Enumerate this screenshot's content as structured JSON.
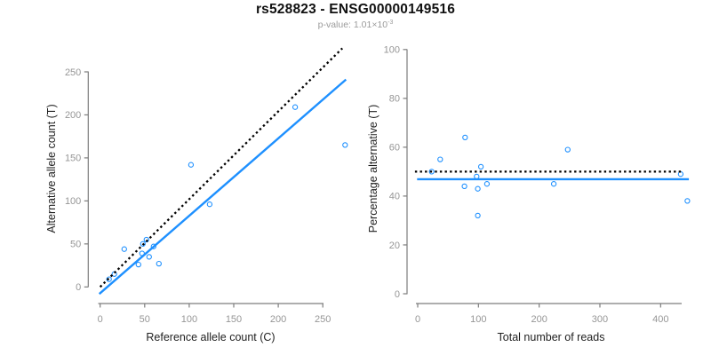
{
  "header": {
    "title": "rs528823 - ENSG00000149516",
    "subtitle_prefix": "p-value: ",
    "subtitle_value": "1.01×10",
    "subtitle_exponent": "-3"
  },
  "colors": {
    "accent_blue": "#1E90FF",
    "dotted_black": "#000000",
    "tick_label_gray": "#969696",
    "axis_line_gray": "#7d7d7d",
    "axis_title_dark": "#1f1f1f",
    "title_black": "#111111",
    "subtitle_gray": "#9b9b9b"
  },
  "chart_data": [
    {
      "name": "allele-count-scatter",
      "type": "scatter",
      "xlabel": "Reference allele count (C)",
      "ylabel": "Alternative allele count (T)",
      "xticks": [
        0,
        50,
        100,
        150,
        200,
        250
      ],
      "yticks": [
        0,
        50,
        100,
        150,
        200,
        250
      ],
      "xlim": [
        -5,
        280
      ],
      "ylim": [
        -10,
        285
      ],
      "grid": false,
      "legend": null,
      "points": [
        [
          10,
          9
        ],
        [
          16,
          15
        ],
        [
          27,
          44
        ],
        [
          43,
          26
        ],
        [
          47,
          39
        ],
        [
          48,
          50
        ],
        [
          52,
          55
        ],
        [
          55,
          35
        ],
        [
          60,
          47
        ],
        [
          66,
          27
        ],
        [
          102,
          142
        ],
        [
          123,
          96
        ],
        [
          219,
          209
        ],
        [
          275,
          165
        ]
      ],
      "lines": [
        {
          "name": "identity-dotted-line",
          "style": "dotted",
          "color": "#000000",
          "slope": 1.02,
          "intercept": 0,
          "x_range": [
            0,
            272
          ]
        },
        {
          "name": "regression-fit-line",
          "style": "solid",
          "color": "#1E90FF",
          "slope": 0.9,
          "intercept": -7.3,
          "x_range": [
            -1,
            276
          ]
        }
      ]
    },
    {
      "name": "percentage-alternative-scatter",
      "type": "scatter",
      "xlabel": "Total number of reads",
      "ylabel": "Percentage alternative (T)",
      "xticks": [
        0,
        100,
        200,
        300,
        400
      ],
      "yticks": [
        0,
        20,
        40,
        60,
        80,
        100
      ],
      "xlim": [
        -10,
        450
      ],
      "ylim": [
        0,
        100
      ],
      "grid": false,
      "legend": null,
      "points": [
        [
          23,
          50
        ],
        [
          37,
          55
        ],
        [
          77,
          44
        ],
        [
          78,
          64
        ],
        [
          97,
          48
        ],
        [
          99,
          43
        ],
        [
          99,
          32
        ],
        [
          104,
          52
        ],
        [
          114,
          45
        ],
        [
          224,
          45
        ],
        [
          247,
          59
        ],
        [
          433,
          49
        ],
        [
          444,
          38
        ]
      ],
      "lines": [
        {
          "name": "expected-50pct-dotted-line",
          "style": "dotted",
          "color": "#000000",
          "slope": 0,
          "intercept": 50,
          "x_range": [
            -4.5,
            437
          ]
        },
        {
          "name": "mean-percentage-line",
          "style": "solid",
          "color": "#1E90FF",
          "slope": 0,
          "intercept": 46.9,
          "x_range": [
            -1,
            446.5
          ]
        }
      ]
    }
  ]
}
